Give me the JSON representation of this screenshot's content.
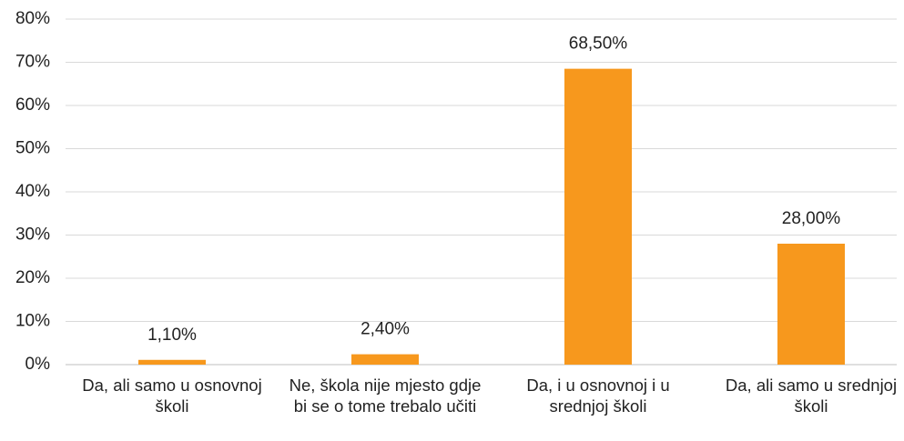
{
  "chart_data": {
    "type": "bar",
    "categories": [
      "Da, ali samo u osnovnoj školi",
      "Ne, škola nije mjesto gdje bi se o tome trebalo učiti",
      "Da, i u osnovnoj i u srednjoj školi",
      "Da, ali samo u srednjoj školi"
    ],
    "values": [
      1.1,
      2.4,
      68.5,
      28.0
    ],
    "value_labels": [
      "1,10%",
      "2,40%",
      "68,50%",
      "28,00%"
    ],
    "color": "#f7981d",
    "ylim": [
      0,
      80
    ],
    "yticks": [
      {
        "value": 0,
        "label": "0%"
      },
      {
        "value": 10,
        "label": "10%"
      },
      {
        "value": 20,
        "label": "20%"
      },
      {
        "value": 30,
        "label": "30%"
      },
      {
        "value": 40,
        "label": "40%"
      },
      {
        "value": 50,
        "label": "50%"
      },
      {
        "value": 60,
        "label": "60%"
      },
      {
        "value": 70,
        "label": "70%"
      },
      {
        "value": 80,
        "label": "80%"
      }
    ],
    "grid": true
  }
}
